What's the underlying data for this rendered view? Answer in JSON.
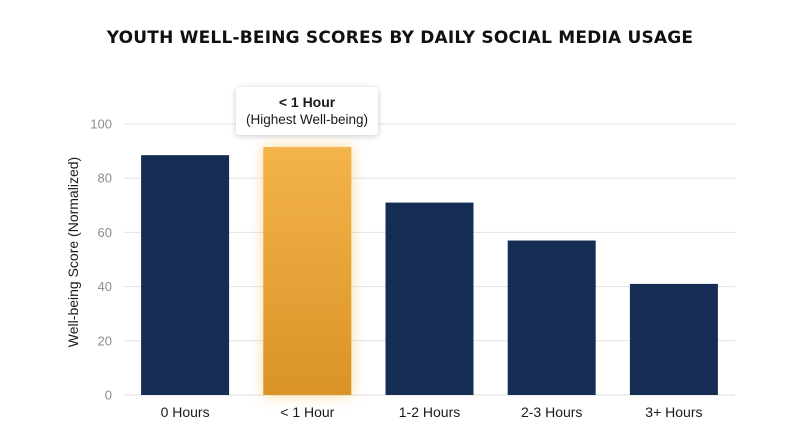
{
  "chart_data": {
    "type": "bar",
    "title": "YOUTH WELL-BEING SCORES BY DAILY SOCIAL MEDIA USAGE",
    "xlabel": "",
    "ylabel": "Well-being Score (Normalized)",
    "categories": [
      "0 Hours",
      "< 1 Hour",
      "1-2 Hours",
      "2-3 Hours",
      "3+ Hours"
    ],
    "values": [
      88.5,
      91.5,
      71,
      57,
      41
    ],
    "ylim": [
      0,
      100
    ],
    "yticks": [
      0,
      20,
      40,
      60,
      80,
      100
    ],
    "grid": true,
    "highlight_index": 1,
    "annotation": {
      "line1": "< 1 Hour",
      "line2": "(Highest Well-being)"
    },
    "colors": {
      "bar": "#152c55",
      "highlight": "#f0ac3c",
      "highlight_glow": "#f5b94a",
      "grid": "#e3e3e3"
    }
  }
}
